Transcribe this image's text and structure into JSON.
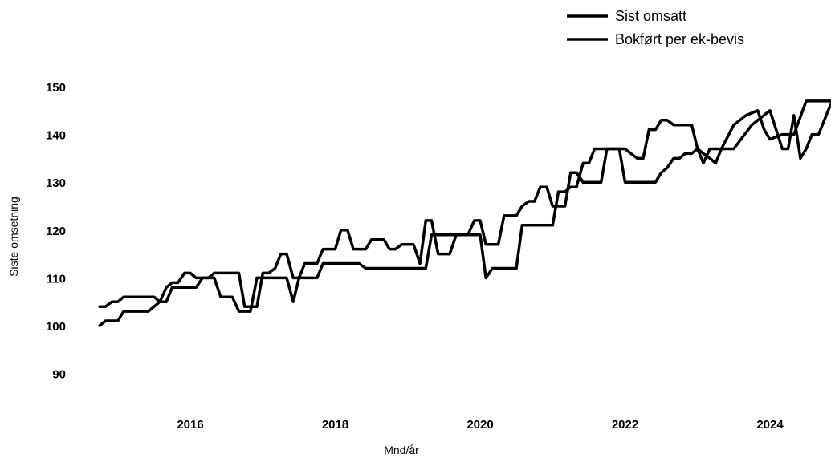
{
  "chart_data": {
    "type": "line",
    "title": "",
    "xlabel": "Mnd/år",
    "ylabel": "Siste omsetning",
    "xlim": [
      2014.6,
      2025.2
    ],
    "ylim": [
      82,
      155
    ],
    "x_ticks": [
      2016,
      2018,
      2020,
      2022,
      2024
    ],
    "y_ticks": [
      90,
      100,
      110,
      120,
      130,
      140,
      150
    ],
    "grid": false,
    "legend_position": "top-right",
    "colors": {
      "series": "#000000",
      "background": "#ffffff"
    },
    "series": [
      {
        "name": "Sist omsatt",
        "x": [
          2014.75,
          2014.83,
          2014.92,
          2015.0,
          2015.08,
          2015.17,
          2015.25,
          2015.33,
          2015.42,
          2015.5,
          2015.58,
          2015.67,
          2015.75,
          2015.83,
          2015.92,
          2016.0,
          2016.08,
          2016.17,
          2016.25,
          2016.33,
          2016.42,
          2016.5,
          2016.58,
          2016.67,
          2016.75,
          2016.83,
          2016.92,
          2017.0,
          2017.08,
          2017.17,
          2017.25,
          2017.33,
          2017.42,
          2017.5,
          2017.58,
          2017.67,
          2017.75,
          2017.83,
          2017.92,
          2018.0,
          2018.08,
          2018.17,
          2018.25,
          2018.33,
          2018.42,
          2018.5,
          2018.58,
          2018.67,
          2018.75,
          2018.83,
          2018.92,
          2019.0,
          2019.08,
          2019.17,
          2019.25,
          2019.33,
          2019.42,
          2019.5,
          2019.58,
          2019.67,
          2019.75,
          2019.83,
          2019.92,
          2020.0,
          2020.08,
          2020.17,
          2020.25,
          2020.33,
          2020.42,
          2020.5,
          2020.58,
          2020.67,
          2020.75,
          2020.83,
          2020.92,
          2021.0,
          2021.08,
          2021.17,
          2021.25,
          2021.33,
          2021.42,
          2021.5,
          2021.58,
          2021.67,
          2021.75,
          2021.83,
          2021.92,
          2022.0,
          2022.08,
          2022.17,
          2022.25,
          2022.33,
          2022.42,
          2022.5,
          2022.58,
          2022.67,
          2022.75,
          2022.83,
          2022.92,
          2023.0,
          2023.08,
          2023.17,
          2023.25,
          2023.33,
          2023.5,
          2023.75,
          2024.0,
          2024.17,
          2024.25,
          2024.33,
          2024.42,
          2024.5,
          2024.58,
          2024.67,
          2024.75,
          2024.83,
          2025.0,
          2025.17
        ],
        "y": [
          100,
          101,
          101,
          101,
          103,
          103,
          103,
          103,
          103,
          104,
          105,
          108,
          109,
          109,
          111,
          111,
          110,
          110,
          110,
          110,
          106,
          106,
          106,
          103,
          103,
          103,
          110,
          110,
          110,
          110,
          110,
          110,
          105,
          110,
          110,
          110,
          110,
          113,
          113,
          113,
          113,
          113,
          113,
          113,
          112,
          112,
          112,
          112,
          112,
          112,
          112,
          112,
          112,
          112,
          112,
          119,
          119,
          119,
          119,
          119,
          119,
          119,
          119,
          119,
          110,
          112,
          112,
          112,
          112,
          112,
          121,
          121,
          121,
          121,
          121,
          121,
          128,
          128,
          129,
          129,
          134,
          134,
          137,
          137,
          137,
          137,
          137,
          130,
          130,
          130,
          130,
          130,
          130,
          132,
          133,
          135,
          135,
          136,
          136,
          137,
          136,
          135,
          134,
          137,
          137,
          142,
          145,
          137,
          137,
          144,
          135,
          137,
          140,
          140,
          143,
          146,
          150,
          152
        ]
      },
      {
        "name": "Bokført per ek-bevis",
        "x": [
          2014.75,
          2014.83,
          2014.92,
          2015.0,
          2015.08,
          2015.17,
          2015.25,
          2015.33,
          2015.42,
          2015.5,
          2015.58,
          2015.67,
          2015.75,
          2015.83,
          2015.92,
          2016.0,
          2016.08,
          2016.17,
          2016.25,
          2016.33,
          2016.42,
          2016.5,
          2016.58,
          2016.67,
          2016.75,
          2016.83,
          2016.92,
          2017.0,
          2017.08,
          2017.17,
          2017.25,
          2017.33,
          2017.42,
          2017.5,
          2017.58,
          2017.67,
          2017.75,
          2017.83,
          2017.92,
          2018.0,
          2018.08,
          2018.17,
          2018.25,
          2018.33,
          2018.42,
          2018.5,
          2018.58,
          2018.67,
          2018.75,
          2018.83,
          2018.92,
          2019.0,
          2019.08,
          2019.17,
          2019.25,
          2019.33,
          2019.42,
          2019.5,
          2019.58,
          2019.67,
          2019.75,
          2019.83,
          2019.92,
          2020.0,
          2020.08,
          2020.17,
          2020.25,
          2020.33,
          2020.42,
          2020.5,
          2020.58,
          2020.67,
          2020.75,
          2020.83,
          2020.92,
          2021.0,
          2021.08,
          2021.17,
          2021.25,
          2021.33,
          2021.42,
          2021.5,
          2021.58,
          2021.67,
          2021.75,
          2021.83,
          2021.92,
          2022.0,
          2022.08,
          2022.17,
          2022.25,
          2022.33,
          2022.42,
          2022.5,
          2022.58,
          2022.67,
          2022.75,
          2022.83,
          2022.92,
          2023.0,
          2023.08,
          2023.17,
          2023.25,
          2023.33,
          2023.5,
          2023.67,
          2023.83,
          2023.92,
          2024.0,
          2024.17,
          2024.25,
          2024.33,
          2024.5,
          2024.58,
          2024.67,
          2024.75,
          2024.83,
          2025.0,
          2025.17
        ],
        "y": [
          104,
          104,
          105,
          105,
          106,
          106,
          106,
          106,
          106,
          106,
          105,
          105,
          108,
          108,
          108,
          108,
          108,
          110,
          110,
          111,
          111,
          111,
          111,
          111,
          104,
          104,
          104,
          111,
          111,
          112,
          115,
          115,
          110,
          110,
          113,
          113,
          113,
          116,
          116,
          116,
          120,
          120,
          116,
          116,
          116,
          118,
          118,
          118,
          116,
          116,
          117,
          117,
          117,
          113,
          122,
          122,
          115,
          115,
          115,
          119,
          119,
          119,
          122,
          122,
          117,
          117,
          117,
          123,
          123,
          123,
          125,
          126,
          126,
          129,
          129,
          125,
          125,
          125,
          132,
          132,
          130,
          130,
          130,
          130,
          137,
          137,
          137,
          137,
          136,
          135,
          135,
          141,
          141,
          143,
          143,
          142,
          142,
          142,
          142,
          137,
          134,
          137,
          137,
          137,
          142,
          144,
          145,
          141,
          139,
          140,
          140,
          140,
          147,
          147,
          147,
          147,
          147,
          147,
          147
        ]
      }
    ]
  }
}
